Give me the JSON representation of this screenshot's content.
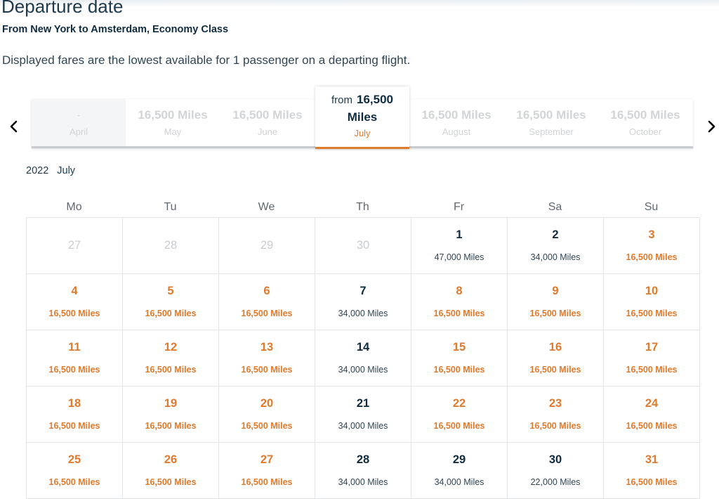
{
  "header": {
    "title": "Departure date",
    "route": "From New York to Amsterdam, Economy Class",
    "note": "Displayed fares are the lowest available for 1 passenger on a departing flight."
  },
  "nav": {
    "prev_icon": "chevron-left-icon",
    "next_icon": "chevron-right-icon"
  },
  "months": {
    "april": {
      "price": "-",
      "name": "April"
    },
    "may": {
      "price": "16,500 Miles",
      "name": "May"
    },
    "june": {
      "price": "16,500 Miles",
      "name": "June"
    },
    "july": {
      "from": "from",
      "price_value": "16,500",
      "price_unit": "Miles",
      "name": "July"
    },
    "august": {
      "price": "16,500 Miles",
      "name": "August"
    },
    "september": {
      "price": "16,500 Miles",
      "name": "September"
    },
    "october": {
      "price": "16,500 Miles",
      "name": "October"
    }
  },
  "calendar": {
    "year": "2022",
    "month": "July",
    "weekdays": [
      "Mo",
      "Tu",
      "We",
      "Th",
      "Fr",
      "Sa",
      "Su"
    ],
    "weeks": [
      [
        {
          "day": "27",
          "fare": "",
          "type": "outside"
        },
        {
          "day": "28",
          "fare": "",
          "type": "outside"
        },
        {
          "day": "29",
          "fare": "",
          "type": "outside"
        },
        {
          "day": "30",
          "fare": "",
          "type": "outside"
        },
        {
          "day": "1",
          "fare": "47,000 Miles",
          "type": "normal"
        },
        {
          "day": "2",
          "fare": "34,000 Miles",
          "type": "normal"
        },
        {
          "day": "3",
          "fare": "16,500 Miles",
          "type": "cheap"
        }
      ],
      [
        {
          "day": "4",
          "fare": "16,500 Miles",
          "type": "cheap"
        },
        {
          "day": "5",
          "fare": "16,500 Miles",
          "type": "cheap"
        },
        {
          "day": "6",
          "fare": "16,500 Miles",
          "type": "cheap"
        },
        {
          "day": "7",
          "fare": "34,000 Miles",
          "type": "normal"
        },
        {
          "day": "8",
          "fare": "16,500 Miles",
          "type": "cheap"
        },
        {
          "day": "9",
          "fare": "16,500 Miles",
          "type": "cheap"
        },
        {
          "day": "10",
          "fare": "16,500 Miles",
          "type": "cheap"
        }
      ],
      [
        {
          "day": "11",
          "fare": "16,500 Miles",
          "type": "cheap"
        },
        {
          "day": "12",
          "fare": "16,500 Miles",
          "type": "cheap"
        },
        {
          "day": "13",
          "fare": "16,500 Miles",
          "type": "cheap"
        },
        {
          "day": "14",
          "fare": "34,000 Miles",
          "type": "normal"
        },
        {
          "day": "15",
          "fare": "16,500 Miles",
          "type": "cheap"
        },
        {
          "day": "16",
          "fare": "16,500 Miles",
          "type": "cheap"
        },
        {
          "day": "17",
          "fare": "16,500 Miles",
          "type": "cheap"
        }
      ],
      [
        {
          "day": "18",
          "fare": "16,500 Miles",
          "type": "cheap"
        },
        {
          "day": "19",
          "fare": "16,500 Miles",
          "type": "cheap"
        },
        {
          "day": "20",
          "fare": "16,500 Miles",
          "type": "cheap"
        },
        {
          "day": "21",
          "fare": "34,000 Miles",
          "type": "normal"
        },
        {
          "day": "22",
          "fare": "16,500 Miles",
          "type": "cheap"
        },
        {
          "day": "23",
          "fare": "16,500 Miles",
          "type": "cheap"
        },
        {
          "day": "24",
          "fare": "16,500 Miles",
          "type": "cheap"
        }
      ],
      [
        {
          "day": "25",
          "fare": "16,500 Miles",
          "type": "cheap"
        },
        {
          "day": "26",
          "fare": "16,500 Miles",
          "type": "cheap"
        },
        {
          "day": "27",
          "fare": "16,500 Miles",
          "type": "cheap"
        },
        {
          "day": "28",
          "fare": "34,000 Miles",
          "type": "normal"
        },
        {
          "day": "29",
          "fare": "34,000 Miles",
          "type": "normal"
        },
        {
          "day": "30",
          "fare": "22,000 Miles",
          "type": "normal"
        },
        {
          "day": "31",
          "fare": "16,500 Miles",
          "type": "cheap"
        }
      ]
    ]
  },
  "colors": {
    "accent_orange": "#e07a2c",
    "text_navy": "#0f2b40",
    "disabled_gray": "#d0d2d4"
  }
}
